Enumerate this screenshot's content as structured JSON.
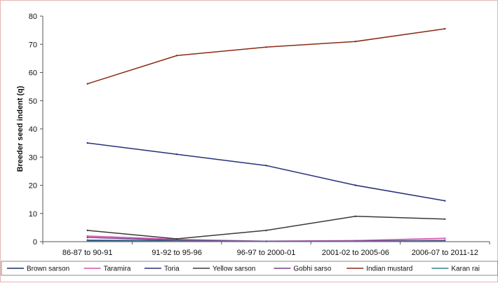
{
  "chart_data": {
    "type": "line",
    "title": "",
    "xlabel": "",
    "ylabel": "Breeder seed indent (q)",
    "categories": [
      "86-87 to 90-91",
      "91-92 to 95-96",
      "96-97 to 2000-01",
      "2001-02 to 2005-06",
      "2006-07 to 2011-12"
    ],
    "ylim": [
      0,
      80
    ],
    "yticks": [
      "0",
      "10",
      "20",
      "30",
      "40",
      "50",
      "60",
      "70",
      "80"
    ],
    "grid": false,
    "legend_position": "bottom",
    "series": [
      {
        "name": "Brown sarson",
        "color": "#1f2a6b",
        "values": [
          0.5,
          0.3,
          0.1,
          0.2,
          0.3
        ]
      },
      {
        "name": "Taramira",
        "color": "#d24fb0",
        "values": [
          2.0,
          0.8,
          0.2,
          0.4,
          1.2
        ]
      },
      {
        "name": "Toria",
        "color": "#27307a",
        "values": [
          35,
          31,
          27,
          20,
          14.5
        ]
      },
      {
        "name": "Yellow sarson",
        "color": "#3a3a3a",
        "values": [
          4,
          1,
          4,
          9,
          8
        ]
      },
      {
        "name": "Gobhi sarso",
        "color": "#7a3a8a",
        "values": [
          1.5,
          0.5,
          0.1,
          0.2,
          0.5
        ]
      },
      {
        "name": "Indian mustard",
        "color": "#8b2a14",
        "values": [
          56,
          66,
          69,
          71,
          75.5
        ]
      },
      {
        "name": "Karan rai",
        "color": "#2a8a8a",
        "values": [
          0.2,
          0.2,
          0.1,
          0.1,
          0.2
        ]
      }
    ]
  }
}
